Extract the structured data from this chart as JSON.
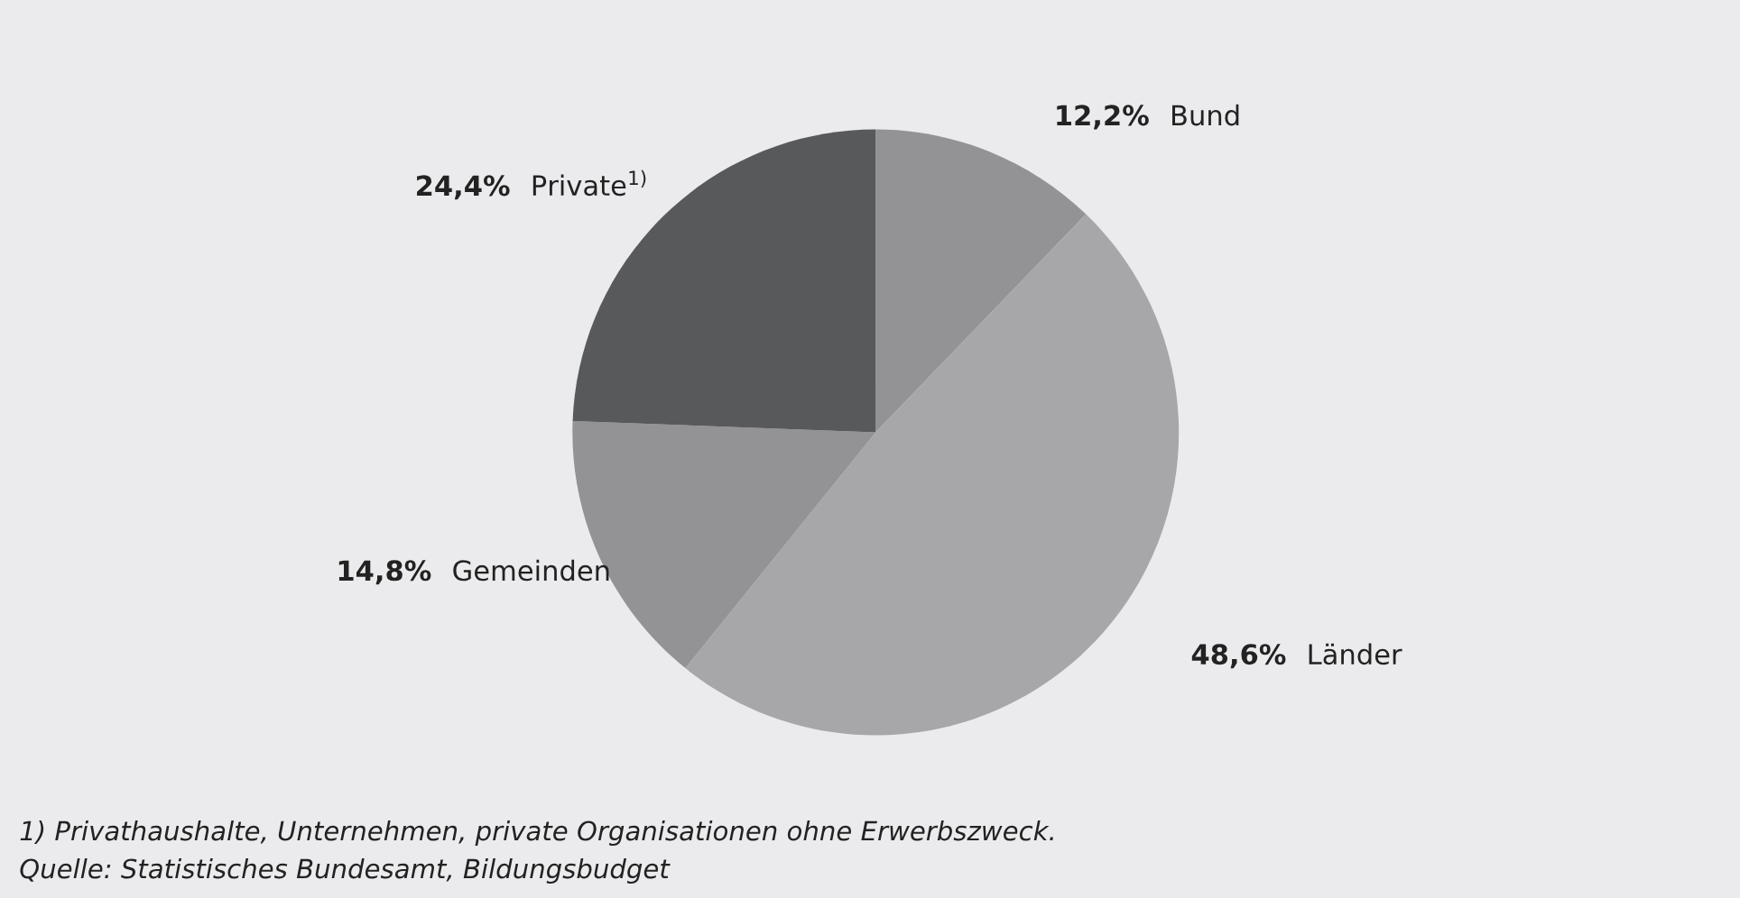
{
  "chart_data": {
    "type": "pie",
    "categories": [
      "Bund",
      "Länder",
      "Gemeinden",
      "Private$^{1)}$"
    ],
    "values": [
      12.2,
      48.6,
      14.8,
      24.4
    ],
    "value_labels": [
      "12,2%",
      "48,6%",
      "14,8%",
      "24,4%"
    ],
    "colors": [
      "#939396",
      "#a7a7aa",
      "#939396",
      "#58595b"
    ],
    "annotations": [
      "1) Privathaushalte, Unternehmen, private Organisationen ohne Erwerbszweck.",
      "Quelle: Statistisches Bundesamt, Bildungsbudget"
    ]
  }
}
